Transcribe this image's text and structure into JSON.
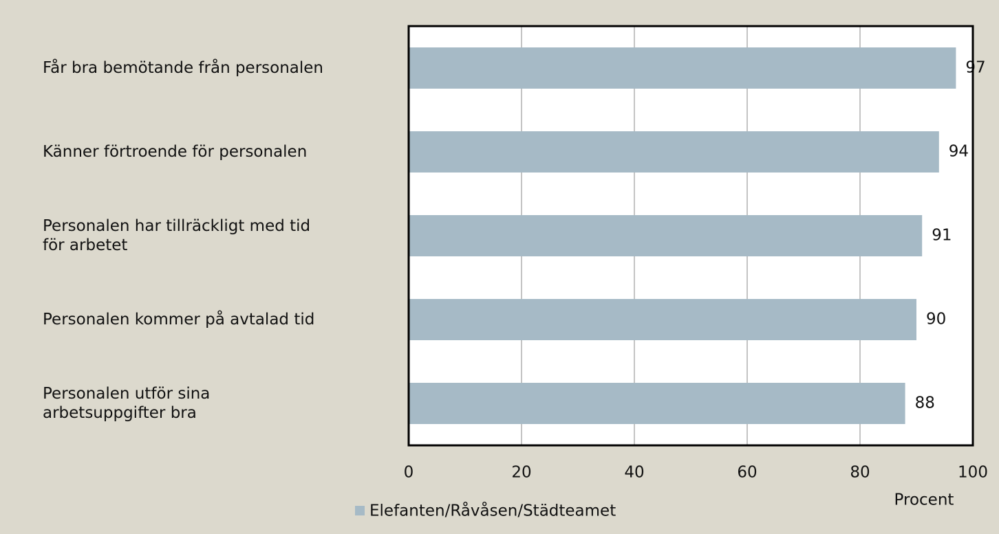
{
  "chart_data": {
    "type": "bar",
    "orientation": "horizontal",
    "categories": [
      "Får bra bemötande från personalen",
      "Känner förtroende för personalen",
      "Personalen har tillräckligt med tid\nför arbetet",
      "Personalen kommer på avtalad tid",
      "Personalen utför sina\narbetsuppgifter bra"
    ],
    "series": [
      {
        "name": "Elefanten/Råvåsen/Städteamet",
        "color": "#a6bac6",
        "values": [
          97,
          94,
          91,
          90,
          88
        ]
      }
    ],
    "xlim": [
      0,
      100
    ],
    "xticks": [
      0,
      20,
      40,
      60,
      80,
      100
    ],
    "xlabel": "Procent",
    "grid": true
  }
}
